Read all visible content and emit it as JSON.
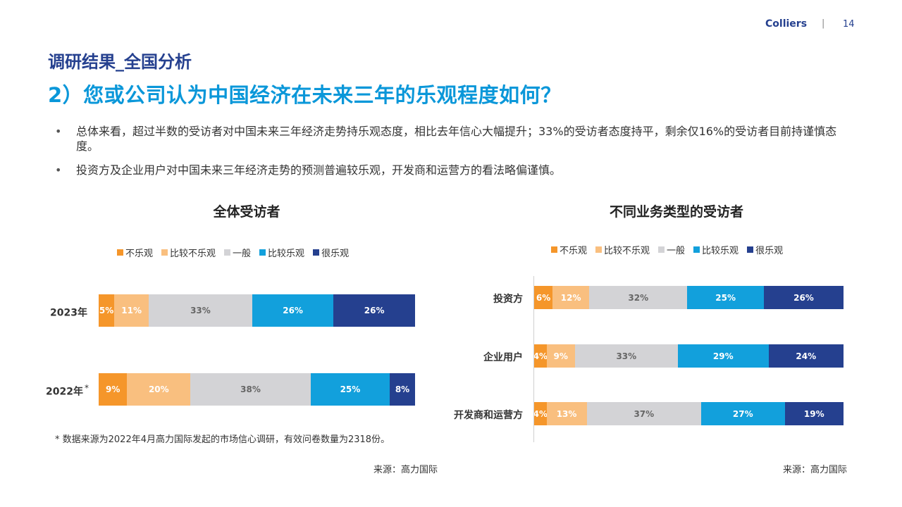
{
  "header": {
    "brand": "Colliers",
    "separator": "|",
    "page_number": "14"
  },
  "section_title": "调研结果_全国分析",
  "question_title": "2）您或公司认为中国经济在未来三年的乐观程度如何？",
  "bullets": [
    "总体来看，超过半数的受访者对中国未来三年经济走势持乐观态度，相比去年信心大幅提升；33%的受访者态度持平，剩余仅16%的受访者目前持谨慎态度。",
    "投资方及企业用户对中国未来三年经济走势的预测普遍较乐观，开发商和运营方的看法略偏谨慎。"
  ],
  "bullet_marker": "•",
  "colors": {
    "不乐观": "#f5962a",
    "比较不乐观": "#f9bf7f",
    "一般": "#d3d3d6",
    "比较乐观": "#12a0dc",
    "很乐观": "#25408f"
  },
  "label_colors": {
    "不乐观": "#ffffff",
    "比较不乐观": "#ffffff",
    "一般": "#666666",
    "比较乐观": "#ffffff",
    "很乐观": "#ffffff"
  },
  "chart_data": [
    {
      "type": "bar",
      "orientation": "horizontal",
      "stacked": true,
      "title": "全体受访者",
      "categories": [
        "2023年",
        "2022年"
      ],
      "category_marks": [
        "",
        "*"
      ],
      "series": [
        {
          "name": "不乐观",
          "values": [
            5,
            9
          ],
          "labels": [
            "5%",
            "9%"
          ]
        },
        {
          "name": "比较不乐观",
          "values": [
            11,
            20
          ],
          "labels": [
            "11%",
            "20%"
          ]
        },
        {
          "name": "一般",
          "values": [
            33,
            38
          ],
          "labels": [
            "33%",
            "38%"
          ]
        },
        {
          "name": "比较乐观",
          "values": [
            26,
            25
          ],
          "labels": [
            "26%",
            "25%"
          ]
        },
        {
          "name": "很乐观",
          "values": [
            26,
            8
          ],
          "labels": [
            "26%",
            "8%"
          ]
        }
      ],
      "legend": "top"
    },
    {
      "type": "bar",
      "orientation": "horizontal",
      "stacked": true,
      "title": "不同业务类型的受访者",
      "categories": [
        "投资方",
        "企业用户",
        "开发商和运营方"
      ],
      "series": [
        {
          "name": "不乐观",
          "values": [
            6,
            4,
            4
          ],
          "labels": [
            "6%",
            "4%",
            "4%"
          ]
        },
        {
          "name": "比较不乐观",
          "values": [
            12,
            9,
            13
          ],
          "labels": [
            "12%",
            "9%",
            "13%"
          ]
        },
        {
          "name": "一般",
          "values": [
            32,
            33,
            37
          ],
          "labels": [
            "32%",
            "33%",
            "37%"
          ]
        },
        {
          "name": "比较乐观",
          "values": [
            25,
            29,
            27
          ],
          "labels": [
            "25%",
            "29%",
            "27%"
          ]
        },
        {
          "name": "很乐观",
          "values": [
            26,
            24,
            19
          ],
          "labels": [
            "26%",
            "24%",
            "19%"
          ]
        }
      ],
      "legend": "top"
    }
  ],
  "footnote": "* 数据来源为2022年4月高力国际发起的市场信心调研，有效问卷数量为2318份。",
  "sources": [
    "来源：高力国际",
    "来源：高力国际"
  ]
}
